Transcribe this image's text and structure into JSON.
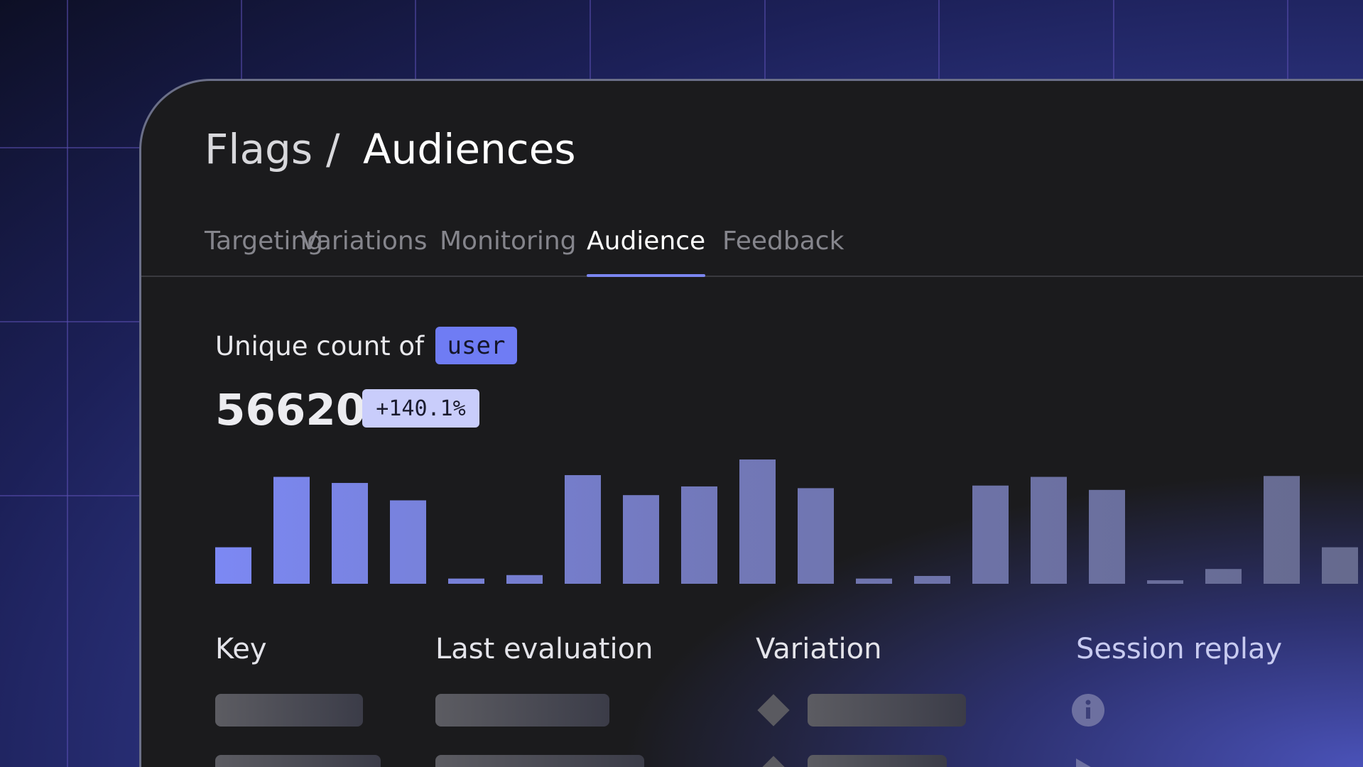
{
  "header": {
    "breadcrumb": [
      "Flags",
      "/",
      "Audiences"
    ]
  },
  "tabs": {
    "items": [
      "Targeting",
      "Variations",
      "Monitoring",
      "Audience",
      "Feedback"
    ],
    "active": 3
  },
  "metric": {
    "label": "Unique count of",
    "key": "user",
    "value": "56620",
    "change": "+140.1%"
  },
  "chart": {
    "type": "bar",
    "values": [
      42,
      123,
      116,
      96,
      6,
      10,
      125,
      102,
      112,
      143,
      110,
      6,
      9,
      113,
      123,
      108,
      4,
      17,
      124,
      42
    ]
  },
  "table": {
    "headers": [
      "Key",
      "Last evaluation",
      "Variation",
      "Session replay"
    ]
  }
}
